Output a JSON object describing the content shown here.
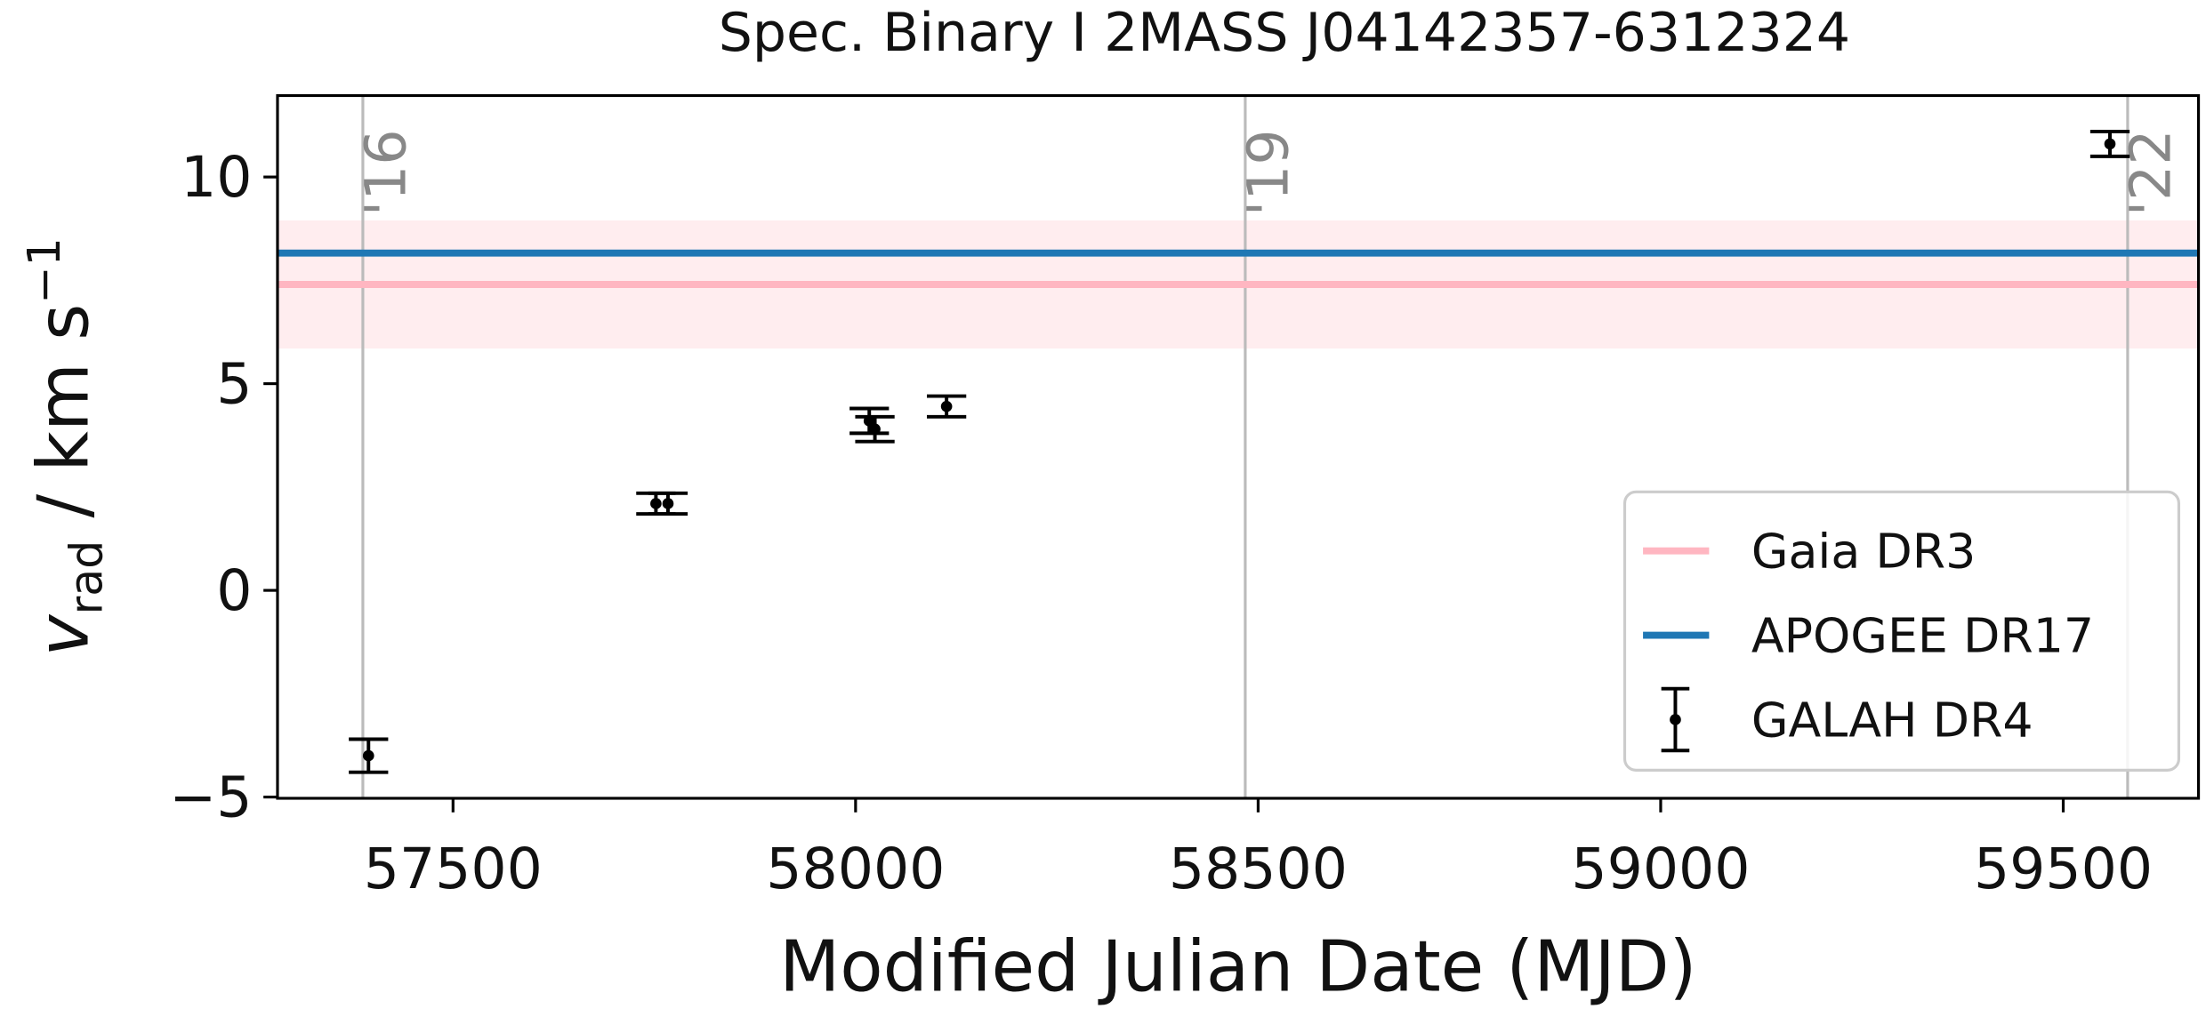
{
  "chart_data": {
    "type": "errorbar",
    "title": "Spec. Binary I   2MASS J04142357-6312324",
    "x_label": "Modified Julian Date (MJD)",
    "y_label": {
      "symbol": "v",
      "subscript": "rad",
      "unit": " / km s",
      "exponent": "−1"
    },
    "xlim": [
      57282,
      59668
    ],
    "ylim": [
      -5.03,
      11.97
    ],
    "xticks": [
      57500,
      58000,
      58500,
      59000,
      59500
    ],
    "yticks": [
      {
        "value": -5,
        "label": "−5"
      },
      0,
      5,
      10
    ],
    "year_markers": {
      "x": [
        57388,
        58484,
        59580
      ],
      "labels": [
        "'16",
        "'19",
        "'22"
      ],
      "color": "#bbbbbb"
    },
    "reference_lines": [
      {
        "name": "Gaia DR3",
        "color": "#ffb6c1",
        "value": 7.4,
        "error": 1.55
      },
      {
        "name": "APOGEE DR17",
        "color": "#1f77b4",
        "value": 8.16
      }
    ],
    "series": [
      {
        "name": "GALAH DR4",
        "color": "#000000",
        "x": [
          57395,
          57752,
          57767,
          58017,
          58024,
          58113,
          59558
        ],
        "values": [
          -4.0,
          2.1,
          2.1,
          4.1,
          3.9,
          4.45,
          10.8
        ],
        "errors": [
          0.4,
          0.25,
          0.25,
          0.3,
          0.3,
          0.25,
          0.3
        ]
      }
    ],
    "legend": "lower right"
  }
}
